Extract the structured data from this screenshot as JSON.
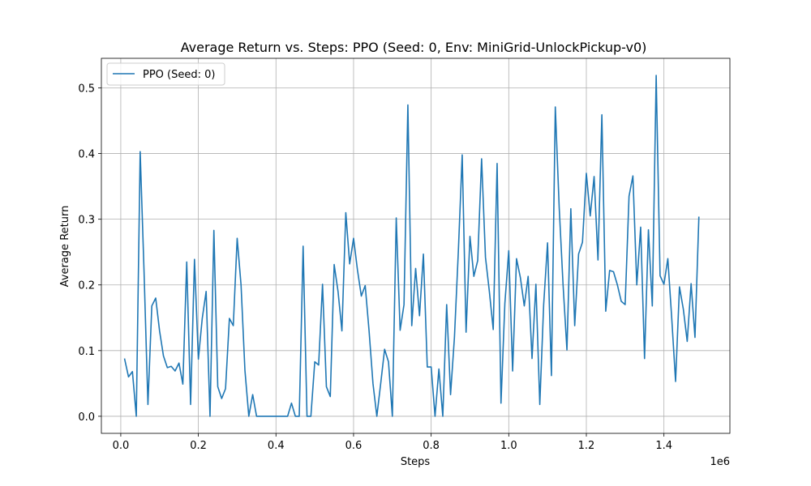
{
  "chart_data": {
    "type": "line",
    "title": "Average Return vs. Steps: PPO (Seed: 0, Env: MiniGrid-UnlockPickup-v0)",
    "xlabel": "Steps",
    "ylabel": "Average Return",
    "x_offset_label": "1e6",
    "xlim": [
      -50000,
      1570000
    ],
    "ylim": [
      -0.026,
      0.545
    ],
    "x_ticks": [
      0,
      200000,
      400000,
      600000,
      800000,
      1000000,
      1200000,
      1400000
    ],
    "x_tick_labels": [
      "0.0",
      "0.2",
      "0.4",
      "0.6",
      "0.8",
      "1.0",
      "1.2",
      "1.4"
    ],
    "y_ticks": [
      0.0,
      0.1,
      0.2,
      0.3,
      0.4,
      0.5
    ],
    "y_tick_labels": [
      "0.0",
      "0.1",
      "0.2",
      "0.3",
      "0.4",
      "0.5"
    ],
    "grid": true,
    "legend_position": "top-left",
    "series": [
      {
        "name": "PPO (Seed: 0)",
        "color": "#1f77b4",
        "x": [
          10000,
          20000,
          30000,
          40000,
          50000,
          60000,
          70000,
          80000,
          90000,
          100000,
          110000,
          120000,
          130000,
          140000,
          150000,
          160000,
          170000,
          180000,
          190000,
          200000,
          210000,
          220000,
          230000,
          240000,
          250000,
          260000,
          270000,
          280000,
          290000,
          300000,
          310000,
          320000,
          330000,
          340000,
          350000,
          360000,
          370000,
          380000,
          390000,
          400000,
          410000,
          420000,
          430000,
          440000,
          450000,
          460000,
          470000,
          480000,
          490000,
          500000,
          510000,
          520000,
          530000,
          540000,
          550000,
          560000,
          570000,
          580000,
          590000,
          600000,
          610000,
          620000,
          630000,
          640000,
          650000,
          660000,
          670000,
          680000,
          690000,
          700000,
          710000,
          720000,
          730000,
          740000,
          750000,
          760000,
          770000,
          780000,
          790000,
          800000,
          810000,
          820000,
          830000,
          840000,
          850000,
          860000,
          870000,
          880000,
          890000,
          900000,
          910000,
          920000,
          930000,
          940000,
          950000,
          960000,
          970000,
          980000,
          990000,
          1000000,
          1010000,
          1020000,
          1030000,
          1040000,
          1050000,
          1060000,
          1070000,
          1080000,
          1090000,
          1100000,
          1110000,
          1120000,
          1130000,
          1140000,
          1150000,
          1160000,
          1170000,
          1180000,
          1190000,
          1200000,
          1210000,
          1220000,
          1230000,
          1240000,
          1250000,
          1260000,
          1270000,
          1280000,
          1290000,
          1300000,
          1310000,
          1320000,
          1330000,
          1340000,
          1350000,
          1360000,
          1370000,
          1380000,
          1390000,
          1400000,
          1410000,
          1420000,
          1430000,
          1440000,
          1450000,
          1460000,
          1470000,
          1480000,
          1490000
        ],
        "values": [
          0.087,
          0.06,
          0.068,
          0.0,
          0.403,
          0.22,
          0.018,
          0.168,
          0.18,
          0.13,
          0.092,
          0.074,
          0.076,
          0.069,
          0.081,
          0.049,
          0.235,
          0.018,
          0.239,
          0.087,
          0.149,
          0.19,
          0.0,
          0.283,
          0.045,
          0.027,
          0.042,
          0.149,
          0.138,
          0.271,
          0.2,
          0.07,
          0.0,
          0.033,
          0.0,
          0.0,
          0.0,
          0.0,
          0.0,
          0.0,
          0.0,
          0.0,
          0.0,
          0.02,
          0.0,
          0.0,
          0.259,
          0.0,
          0.0,
          0.083,
          0.078,
          0.201,
          0.045,
          0.03,
          0.231,
          0.19,
          0.13,
          0.31,
          0.232,
          0.271,
          0.223,
          0.183,
          0.199,
          0.13,
          0.05,
          0.0,
          0.05,
          0.102,
          0.083,
          0.0,
          0.302,
          0.131,
          0.17,
          0.474,
          0.138,
          0.225,
          0.153,
          0.247,
          0.075,
          0.075,
          0.0,
          0.072,
          0.0,
          0.17,
          0.033,
          0.12,
          0.25,
          0.398,
          0.128,
          0.274,
          0.213,
          0.237,
          0.392,
          0.242,
          0.19,
          0.132,
          0.385,
          0.02,
          0.172,
          0.252,
          0.069,
          0.24,
          0.211,
          0.168,
          0.213,
          0.088,
          0.201,
          0.018,
          0.17,
          0.264,
          0.062,
          0.471,
          0.318,
          0.2,
          0.101,
          0.316,
          0.138,
          0.247,
          0.265,
          0.37,
          0.305,
          0.365,
          0.238,
          0.459,
          0.16,
          0.222,
          0.22,
          0.2,
          0.175,
          0.17,
          0.335,
          0.366,
          0.2,
          0.288,
          0.088,
          0.284,
          0.168,
          0.519,
          0.214,
          0.201,
          0.24,
          0.15,
          0.053,
          0.197,
          0.163,
          0.114,
          0.202,
          0.12,
          0.303
        ]
      }
    ]
  }
}
